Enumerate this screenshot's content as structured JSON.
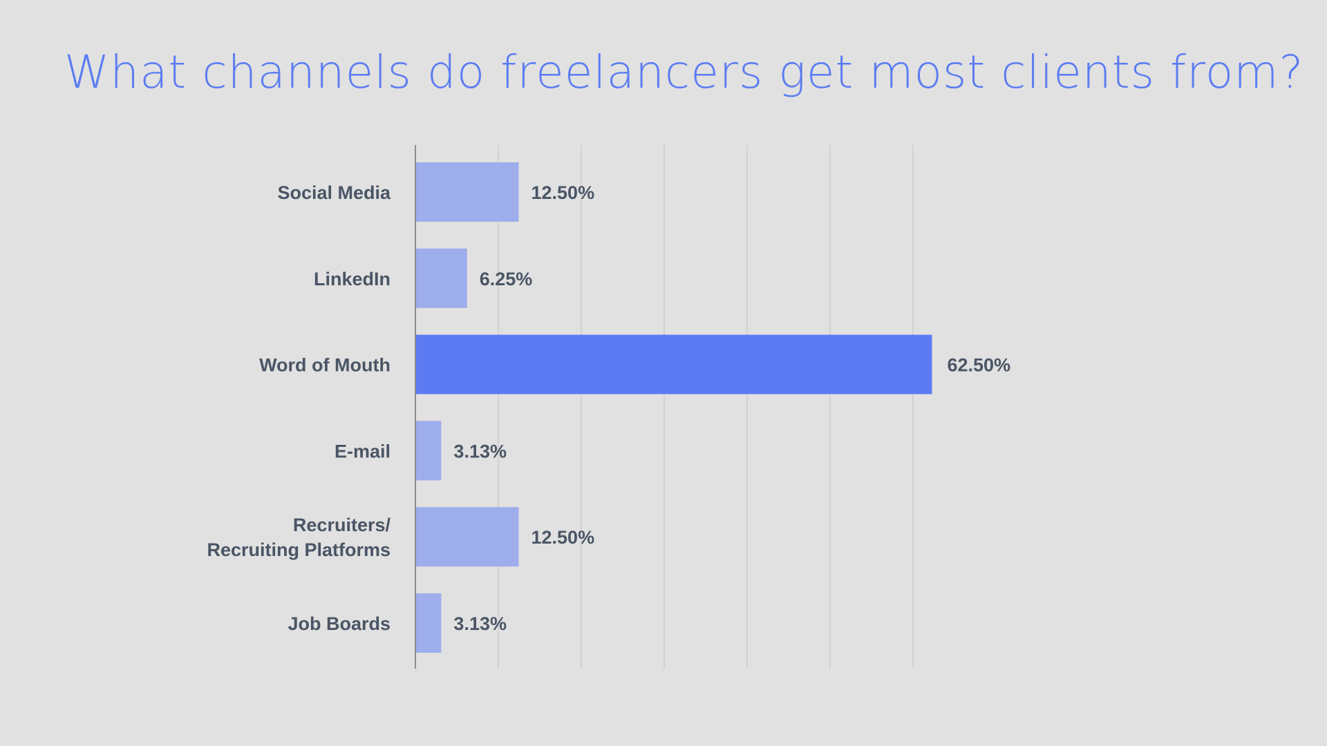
{
  "chart_data": {
    "type": "bar",
    "orientation": "horizontal",
    "title": "What channels do freelancers get most clients from?",
    "categories": [
      [
        "Social Media"
      ],
      [
        "LinkedIn"
      ],
      [
        "Word of Mouth"
      ],
      [
        "E-mail"
      ],
      [
        "Recruiters/",
        "Recruiting Platforms"
      ],
      [
        "Job Boards"
      ]
    ],
    "values": [
      12.5,
      6.25,
      62.5,
      3.13,
      12.5,
      3.13
    ],
    "value_labels": [
      "12.50%",
      "6.25%",
      "62.50%",
      "3.13%",
      "12.50%",
      "3.13%"
    ],
    "highlight_index": 2,
    "xlim": [
      0,
      70
    ],
    "grid": true,
    "colors": {
      "bar": "#9eadec",
      "highlight": "#5c7bf3",
      "grid": "#cdcdcd",
      "axis": "#8c8c8c",
      "title": "#5b7cf2",
      "label": "#4a5565"
    }
  }
}
